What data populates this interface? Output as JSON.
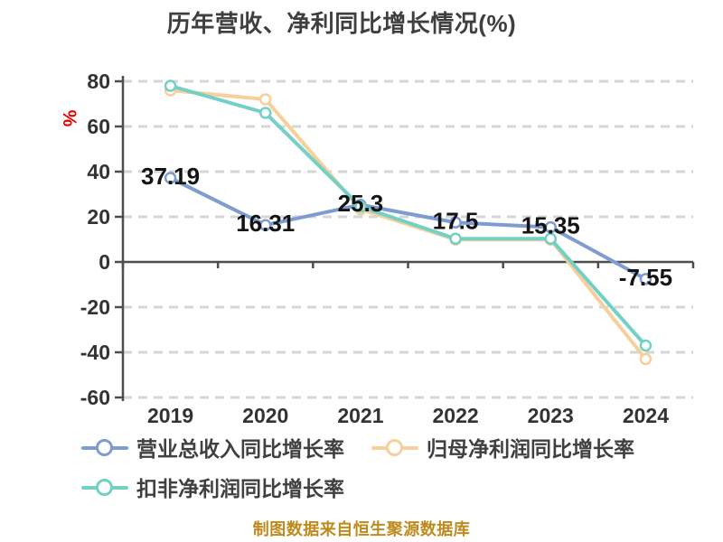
{
  "title": "历年营收、净利同比增长情况(%)",
  "caption": "制图数据来自恒生聚源数据库",
  "colors": {
    "revenue_line": "#7e9cd0",
    "net_profit_line": "#f7cf9a",
    "non_gaap_line": "#73d0c6",
    "title": "#3f3f3f",
    "axis_line": "#4d4d4d",
    "grid_line": "#d6d6d6",
    "tick_text": "#333333",
    "data_label_text": "#141414",
    "axis_unit": "#e60000",
    "caption": "#bf8b1e"
  },
  "chart_data": {
    "type": "line",
    "title": "历年营收、净利同比增长情况(%)",
    "categories": [
      "2019",
      "2020",
      "2021",
      "2022",
      "2023",
      "2024"
    ],
    "series": [
      {
        "name": "营业总收入同比增长率",
        "color": "#7e9cd0",
        "values": [
          37.19,
          16.31,
          25.3,
          17.5,
          15.35,
          -7.55
        ],
        "labels": [
          "37.19",
          "16.31",
          "25.3",
          "17.5",
          "15.35",
          "-7.55"
        ],
        "labeled": true
      },
      {
        "name": "归母净利润同比增长率",
        "color": "#f7cf9a",
        "values": [
          76,
          72,
          23.3,
          9.9,
          9.9,
          -43
        ],
        "labeled": false
      },
      {
        "name": "扣非净利润同比增长率",
        "color": "#73d0c6",
        "values": [
          78,
          66,
          24.5,
          10.3,
          10.3,
          -37
        ],
        "labeled": false
      }
    ],
    "xlabel": "",
    "ylabel": "%",
    "ylim": [
      -60,
      80
    ],
    "yticks": [
      80,
      60,
      40,
      20,
      0,
      -20,
      -40,
      -60
    ],
    "grid": "horizontal dashed",
    "legend_position": "bottom"
  },
  "legend": {
    "items": [
      {
        "label": "营业总收入同比增长率",
        "color": "#7e9cd0"
      },
      {
        "label": "归母净利润同比增长率",
        "color": "#f7cf9a"
      },
      {
        "label": "扣非净利润同比增长率",
        "color": "#73d0c6"
      }
    ]
  }
}
